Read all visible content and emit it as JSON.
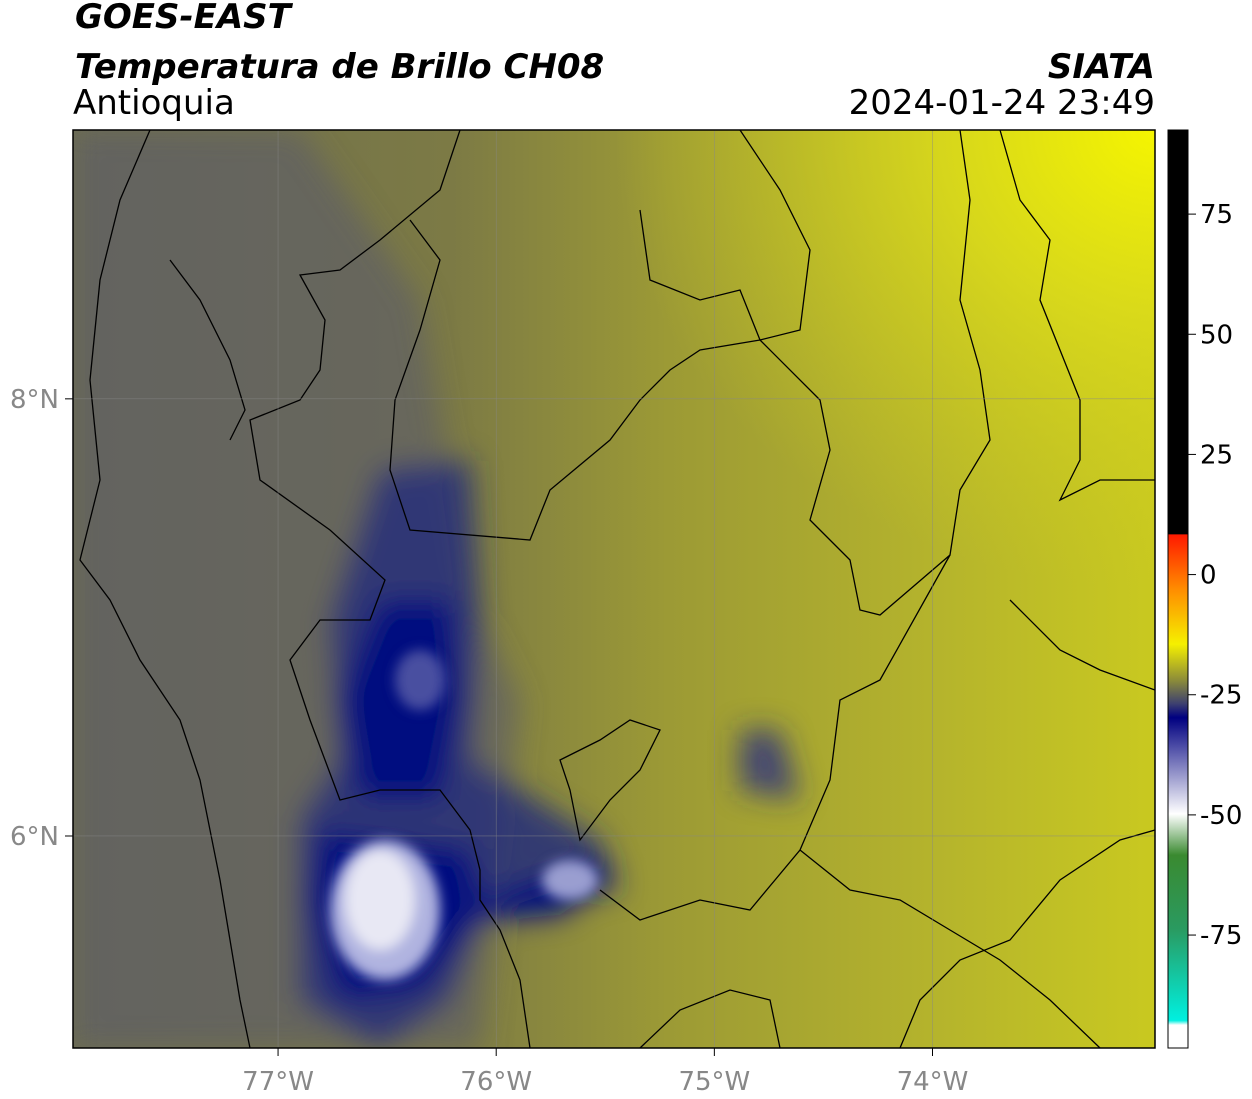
{
  "header": {
    "title": "GOES-EAST",
    "product": "Temperatura de Brillo CH08",
    "region": "Antioquia",
    "source": "SIATA",
    "datetime": "2024-01-24 23:49"
  },
  "map": {
    "xlim": [
      -77.94,
      -72.98
    ],
    "ylim": [
      5.03,
      9.23
    ],
    "xticks": [
      {
        "value": -77,
        "label": "77°W"
      },
      {
        "value": -76,
        "label": "76°W"
      },
      {
        "value": -75,
        "label": "75°W"
      },
      {
        "value": -74,
        "label": "74°W"
      }
    ],
    "yticks": [
      {
        "value": 8,
        "label": "8°N"
      },
      {
        "value": 6,
        "label": "6°N"
      }
    ],
    "grid": true
  },
  "colorbar": {
    "lim": [
      -98.5,
      92.5
    ],
    "ticks": [
      75,
      50,
      25,
      0,
      -25,
      -50,
      -75
    ]
  }
}
